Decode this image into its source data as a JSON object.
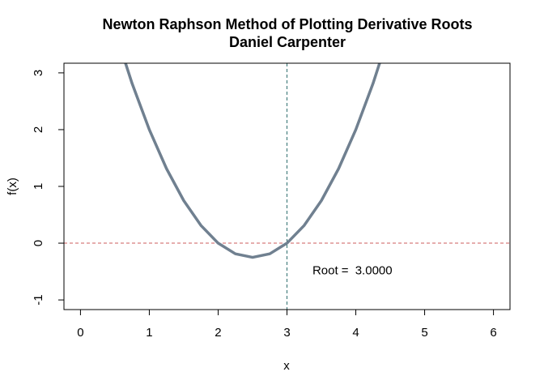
{
  "chart_data": {
    "type": "line",
    "title": "Newton Raphson Method of Plotting Derivative Roots",
    "subtitle": "Daniel Carpenter",
    "xlabel": "x",
    "ylabel": "f(x)",
    "xlim": [
      -0.24,
      6.24
    ],
    "ylim": [
      -1.17,
      3.17
    ],
    "x_ticks": [
      0,
      1,
      2,
      3,
      4,
      5,
      6
    ],
    "y_ticks": [
      -1,
      0,
      1,
      2,
      3
    ],
    "grid": false,
    "legend": "none",
    "series": [
      {
        "color": "#708090",
        "x": [
          0.5,
          0.75,
          1.0,
          1.25,
          1.5,
          1.75,
          2.0,
          2.25,
          2.5,
          2.75,
          3.0,
          3.25,
          3.5,
          3.75,
          4.0,
          4.25,
          4.5
        ],
        "y": [
          3.75,
          2.8125,
          2.0,
          1.3125,
          0.75,
          0.3125,
          0.0,
          -0.1875,
          -0.25,
          -0.1875,
          0.0,
          0.3125,
          0.75,
          1.3125,
          2.0,
          2.8125,
          3.75
        ]
      }
    ],
    "reference_lines": [
      {
        "orientation": "horizontal",
        "value": 0,
        "color": "#cd5c5c",
        "style": "dashed"
      },
      {
        "orientation": "vertical",
        "value": 3,
        "color": "#2f6f6f",
        "style": "dashed"
      }
    ],
    "annotations": [
      {
        "label": "Root = ",
        "value": "3.0000",
        "x": 3.95,
        "y": -0.55
      }
    ]
  }
}
